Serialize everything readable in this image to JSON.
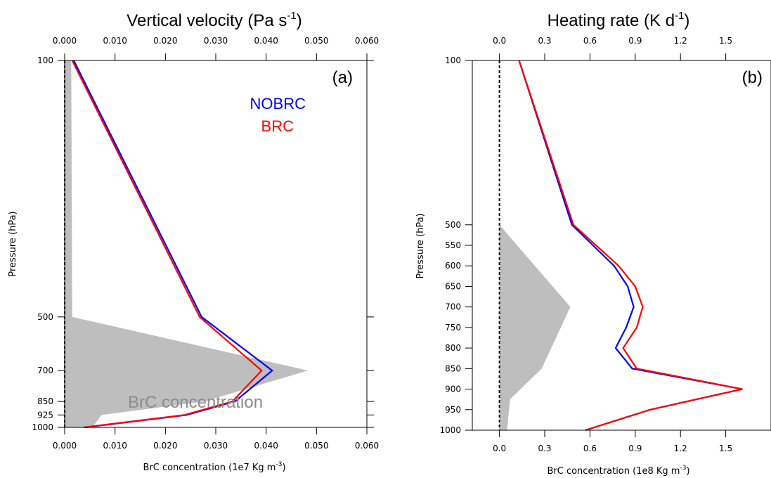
{
  "chart_data": [
    {
      "type": "line",
      "panel_label": "(a)",
      "title": {
        "text": "Vertical velocity (Pa s",
        "sup": "-1",
        "tail": ")"
      },
      "xlabel": {
        "text": "BrC concentration (1e7 Kg m",
        "sup": "-3",
        "tail": ")"
      },
      "ylabel": "Pressure (hPa)",
      "xlim": [
        0.0,
        0.06
      ],
      "x_ticks": [
        0.0,
        0.01,
        0.02,
        0.03,
        0.04,
        0.05,
        0.06
      ],
      "x_tick_labels": [
        "0.000",
        "0.010",
        "0.020",
        "0.030",
        "0.040",
        "0.050",
        "0.060"
      ],
      "ylim": [
        100,
        1000
      ],
      "y_scale": "log",
      "y_ticks": [
        100,
        500,
        700,
        850,
        925,
        1000
      ],
      "y_tick_labels": [
        "100",
        "500",
        "700",
        "850",
        "925",
        "1000"
      ],
      "legend": {
        "placement": "top-right",
        "entries": [
          {
            "name": "NOBRC",
            "color": "#0000ff"
          },
          {
            "name": "BRC",
            "color": "#ff0000"
          }
        ]
      },
      "shade": {
        "name": "BrC concentration",
        "color": "#bebebe",
        "p": [
          100,
          500,
          700,
          850,
          925,
          1000
        ],
        "x": [
          0.0013,
          0.0015,
          0.0483,
          0.0277,
          0.0073,
          0.0055
        ]
      },
      "series": [
        {
          "name": "NOBRC",
          "color": "#0000ff",
          "p": [
            100,
            500,
            700,
            850,
            925,
            1000
          ],
          "x": [
            0.0018,
            0.0272,
            0.0412,
            0.0338,
            0.0242,
            0.004
          ]
        },
        {
          "name": "BRC",
          "color": "#ff0000",
          "p": [
            100,
            500,
            700,
            850,
            925,
            1000
          ],
          "x": [
            0.0015,
            0.0268,
            0.0391,
            0.0333,
            0.0238,
            0.0038
          ]
        }
      ],
      "zero_line": 0.0
    },
    {
      "type": "line",
      "panel_label": "(b)",
      "title": {
        "text": "Heating rate (K d",
        "sup": "-1",
        "tail": ")"
      },
      "xlabel": {
        "text": "BrC concentration (1e8 Kg m",
        "sup": "-3",
        "tail": ")"
      },
      "ylabel": "Pressure (hPa)",
      "xlim": [
        -0.18,
        1.8
      ],
      "x_ticks": [
        0.0,
        0.3,
        0.6,
        0.9,
        1.2,
        1.5
      ],
      "x_tick_labels": [
        "0.0",
        "0.3",
        "0.6",
        "0.9",
        "1.2",
        "1.5"
      ],
      "ylim": [
        100,
        1000
      ],
      "y_scale": "linear",
      "y_ticks": [
        100,
        500,
        550,
        600,
        650,
        700,
        750,
        800,
        850,
        900,
        950,
        1000
      ],
      "y_tick_labels": [
        "100",
        "500",
        "550",
        "600",
        "650",
        "700",
        "750",
        "800",
        "850",
        "900",
        "950",
        "1000"
      ],
      "shade": {
        "name": "",
        "color": "#bebebe",
        "p": [
          500,
          700,
          850,
          925,
          1000
        ],
        "x": [
          0.0,
          0.47,
          0.28,
          0.07,
          0.05
        ]
      },
      "series": [
        {
          "name": "NOBRC",
          "color": "#0000ff",
          "p": [
            100,
            500,
            550,
            600,
            650,
            700,
            750,
            800,
            850,
            900,
            950,
            1000
          ],
          "x": [
            0.13,
            0.48,
            0.62,
            0.76,
            0.85,
            0.89,
            0.84,
            0.77,
            0.88,
            1.61,
            1.0,
            0.57
          ]
        },
        {
          "name": "BRC",
          "color": "#ff0000",
          "p": [
            100,
            500,
            550,
            600,
            650,
            700,
            750,
            800,
            850,
            900,
            950,
            1000
          ],
          "x": [
            0.13,
            0.49,
            0.64,
            0.79,
            0.9,
            0.95,
            0.91,
            0.82,
            0.91,
            1.61,
            1.0,
            0.57
          ]
        }
      ],
      "zero_line": 0.0
    }
  ]
}
